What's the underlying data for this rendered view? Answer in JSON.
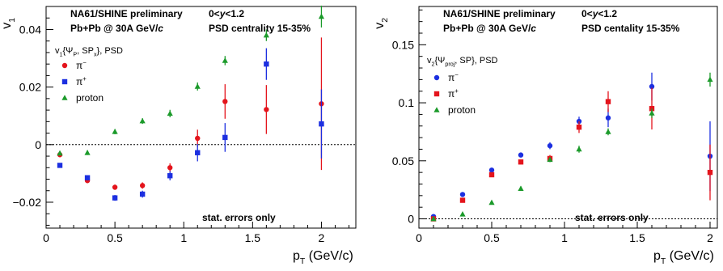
{
  "chart_data": [
    {
      "type": "scatter",
      "ylabel": "v₁",
      "xlabel": "pₜ (GeV/c)",
      "xlim": [
        0,
        2.25
      ],
      "ylim": [
        -0.029,
        0.048
      ],
      "x_ticks": [
        0,
        0.5,
        1,
        1.5,
        2
      ],
      "x_tick_labels": [
        "0",
        "0.5",
        "1",
        "1.5",
        "2"
      ],
      "y_ticks": [
        -0.02,
        0,
        0.02,
        0.04
      ],
      "y_tick_labels": [
        "−0.02",
        "0",
        "0.02",
        "0.04"
      ],
      "grid": false,
      "zero_line": true,
      "annotations": {
        "experiment": "NA61/SHINE preliminary",
        "system": "Pb+Pb @ 30A GeV/c",
        "rapidity": "0<y<1.2",
        "centrality": "PSD centrality 15-35%",
        "errors": "stat. errors only"
      },
      "legend_title": "v₁{ΨP, SPx}, PSD",
      "legend_position": "top-left",
      "series": [
        {
          "name": "π⁻",
          "color": "#e4141c",
          "marker": "circle",
          "x": [
            0.1,
            0.3,
            0.5,
            0.7,
            0.9,
            1.1,
            1.3,
            1.6,
            2.0
          ],
          "y": [
            -0.0035,
            -0.0125,
            -0.0148,
            -0.0142,
            -0.008,
            0.0022,
            0.015,
            0.0122,
            0.0142
          ],
          "err": [
            0.0008,
            0.0008,
            0.0009,
            0.0011,
            0.0015,
            0.003,
            0.006,
            0.0085,
            0.023
          ]
        },
        {
          "name": "π⁺",
          "color": "#1c2fe0",
          "marker": "square",
          "x": [
            0.1,
            0.3,
            0.5,
            0.7,
            0.9,
            1.1,
            1.3,
            1.6,
            2.0
          ],
          "y": [
            -0.0072,
            -0.0115,
            -0.0185,
            -0.0172,
            -0.0108,
            -0.0028,
            0.0025,
            0.028,
            0.0072
          ],
          "err": [
            0.0008,
            0.0008,
            0.001,
            0.0012,
            0.0016,
            0.003,
            0.005,
            0.0055,
            0.012
          ]
        },
        {
          "name": "proton",
          "color": "#1b9a2a",
          "marker": "triangle",
          "x": [
            0.1,
            0.3,
            0.5,
            0.7,
            0.9,
            1.1,
            1.3,
            1.6,
            2.0
          ],
          "y": [
            -0.003,
            -0.0028,
            0.0045,
            0.0082,
            0.0108,
            0.0202,
            0.0292,
            0.038,
            0.0445
          ],
          "err": [
            0.0007,
            0.0008,
            0.0009,
            0.001,
            0.0013,
            0.0014,
            0.0016,
            0.002,
            0.0038
          ]
        }
      ]
    },
    {
      "type": "scatter",
      "ylabel": "v₂",
      "xlabel": "pₜ (GeV/c)",
      "xlim": [
        0,
        2.05
      ],
      "ylim": [
        -0.008,
        0.183
      ],
      "x_ticks": [
        0,
        0.5,
        1,
        1.5,
        2
      ],
      "x_tick_labels": [
        "0",
        "0.5",
        "1",
        "1.5",
        "2"
      ],
      "y_ticks": [
        0,
        0.05,
        0.1,
        0.15
      ],
      "y_tick_labels": [
        "0",
        "0.05",
        "0.1",
        "0.15"
      ],
      "grid": false,
      "zero_line": true,
      "annotations": {
        "experiment": "NA61/SHINE preliminary",
        "system": "Pb+Pb @ 30A GeV/c",
        "rapidity": "0<y<1.2",
        "centrality": "PSD centality 15-35%",
        "errors": "stat. errors only"
      },
      "legend_title": "v₂{Ψproj, SP}, PSD",
      "legend_position": "top-left",
      "series": [
        {
          "name": "π⁻",
          "color": "#1c2fe0",
          "marker": "circle",
          "x": [
            0.1,
            0.3,
            0.5,
            0.7,
            0.9,
            1.1,
            1.3,
            1.6,
            2.0
          ],
          "y": [
            0.002,
            0.021,
            0.042,
            0.055,
            0.063,
            0.084,
            0.087,
            0.114,
            0.054
          ],
          "err": [
            0.001,
            0.002,
            0.002,
            0.002,
            0.003,
            0.004,
            0.008,
            0.012,
            0.03
          ]
        },
        {
          "name": "π⁺",
          "color": "#e4141c",
          "marker": "square",
          "x": [
            0.1,
            0.3,
            0.5,
            0.7,
            0.9,
            1.1,
            1.3,
            1.6,
            2.0
          ],
          "y": [
            0.0,
            0.016,
            0.038,
            0.049,
            0.052,
            0.079,
            0.101,
            0.095,
            0.04
          ],
          "err": [
            0.001,
            0.002,
            0.002,
            0.002,
            0.003,
            0.005,
            0.009,
            0.018,
            0.024
          ]
        },
        {
          "name": "proton",
          "color": "#1b9a2a",
          "marker": "triangle",
          "x": [
            0.1,
            0.3,
            0.5,
            0.7,
            0.9,
            1.1,
            1.3,
            1.6,
            2.0
          ],
          "y": [
            0.0,
            0.004,
            0.014,
            0.026,
            0.051,
            0.06,
            0.075,
            0.091,
            0.12
          ],
          "err": [
            0.0008,
            0.001,
            0.0015,
            0.002,
            0.002,
            0.003,
            0.003,
            0.004,
            0.006
          ]
        }
      ]
    }
  ]
}
